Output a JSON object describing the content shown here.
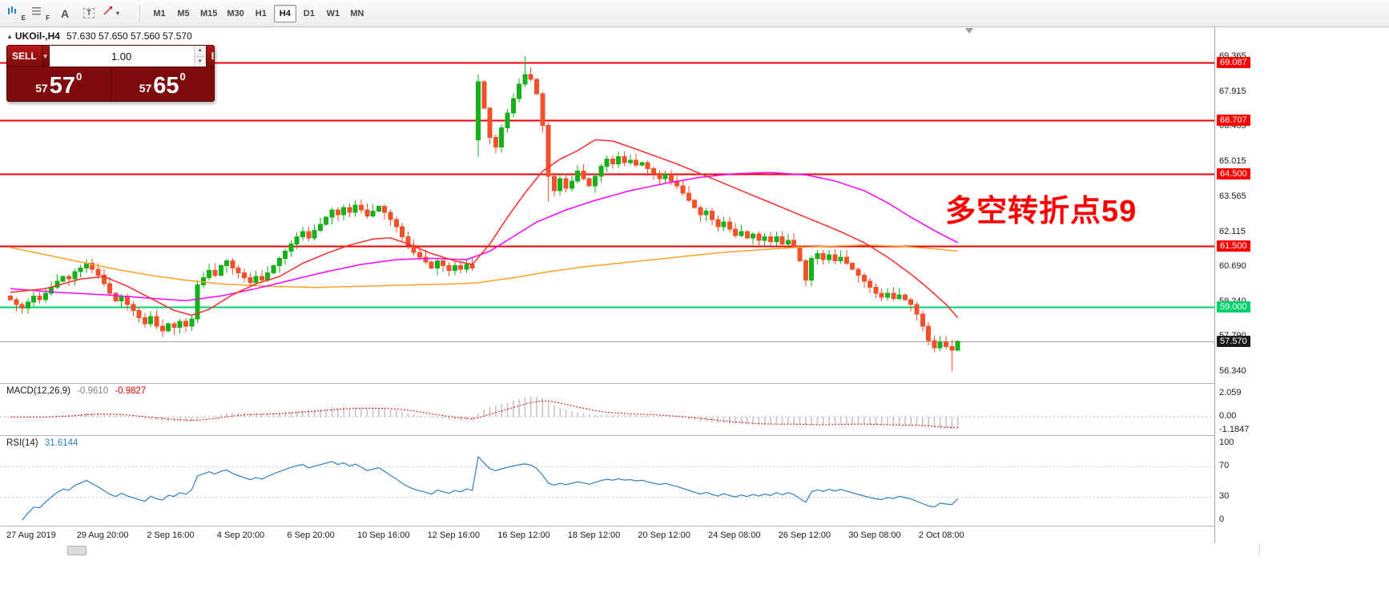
{
  "toolbar": {
    "tools": [
      {
        "label": "E"
      },
      {
        "label": "F"
      },
      {
        "label": "A"
      },
      {
        "label": "T"
      },
      {
        "label": ""
      }
    ],
    "timeframes": [
      "M1",
      "M5",
      "M15",
      "M30",
      "H1",
      "H4",
      "D1",
      "W1",
      "MN"
    ],
    "active_timeframe": "H4"
  },
  "chart": {
    "title": "UKOil-,H4",
    "quote": "57.630 57.650 57.560 57.570",
    "annotation": {
      "text": "多空转折点59",
      "color": "#ff0000"
    }
  },
  "trade_panel": {
    "sell_label": "SELL",
    "buy_label": "BUY",
    "volume": "1.00",
    "bid": {
      "int": "57",
      "dec": "57",
      "pip": "0",
      "full": "57.570"
    },
    "ask": {
      "int": "57",
      "dec": "65",
      "pip": "0",
      "full": "57.650"
    }
  },
  "chart_data": {
    "type": "candlestick",
    "symbol": "UKOil-",
    "timeframe": "H4",
    "ylim": [
      55.85,
      70.55
    ],
    "first_open": 59.45,
    "closes": [
      59.3,
      59.1,
      58.95,
      59.2,
      59.45,
      59.3,
      59.55,
      59.8,
      60.05,
      60.25,
      60.15,
      60.45,
      60.6,
      60.8,
      60.55,
      60.3,
      59.95,
      59.55,
      59.25,
      59.45,
      59.1,
      58.85,
      58.55,
      58.3,
      58.6,
      58.2,
      58.0,
      58.3,
      58.15,
      58.4,
      58.2,
      58.5,
      59.9,
      60.2,
      60.5,
      60.3,
      60.7,
      60.9,
      60.6,
      60.4,
      60.2,
      60.0,
      60.25,
      60.1,
      60.4,
      60.7,
      61.0,
      61.3,
      61.6,
      61.9,
      62.1,
      61.85,
      62.15,
      62.4,
      62.7,
      63.0,
      62.8,
      63.1,
      62.9,
      63.2,
      63.0,
      62.75,
      62.95,
      63.15,
      62.9,
      62.6,
      62.3,
      61.9,
      61.55,
      61.25,
      61.05,
      60.85,
      60.6,
      60.9,
      60.7,
      60.5,
      60.7,
      60.55,
      60.75,
      60.6,
      68.3,
      67.2,
      66.0,
      65.6,
      66.4,
      67.0,
      67.6,
      68.2,
      68.6,
      68.4,
      67.8,
      66.5,
      64.4,
      63.8,
      64.3,
      63.9,
      64.2,
      64.6,
      64.3,
      64.0,
      64.4,
      64.8,
      65.1,
      64.9,
      65.2,
      64.95,
      65.05,
      64.85,
      64.95,
      64.7,
      64.5,
      64.3,
      64.45,
      64.2,
      64.0,
      63.7,
      63.4,
      63.1,
      62.8,
      62.95,
      62.6,
      62.3,
      62.5,
      62.2,
      61.95,
      62.1,
      61.85,
      62.0,
      61.75,
      61.9,
      61.7,
      61.9,
      61.6,
      61.75,
      61.5,
      60.9,
      60.1,
      61.0,
      61.2,
      60.95,
      61.15,
      60.9,
      61.05,
      60.8,
      60.55,
      60.3,
      60.05,
      59.8,
      59.55,
      59.4,
      59.55,
      59.35,
      59.5,
      59.3,
      59.1,
      58.7,
      58.2,
      57.6,
      57.3,
      57.55,
      57.35,
      57.2,
      57.57
    ],
    "candle_overrides": {
      "26": {
        "low": 57.75
      },
      "80": {
        "open": 65.9,
        "low": 65.2
      },
      "88": {
        "high": 69.365
      },
      "92": {
        "low": 63.35
      },
      "136": {
        "low": 59.85
      },
      "161": {
        "low": 56.34
      }
    },
    "candle_up_color": "#16b01b",
    "candle_down_color": "#f2512a",
    "y_ticks": [
      69.365,
      67.915,
      66.465,
      65.015,
      63.565,
      62.115,
      60.69,
      59.24,
      57.79,
      56.34
    ],
    "h_lines": [
      {
        "price": 69.087,
        "color": "#f00000"
      },
      {
        "price": 66.707,
        "color": "#f00000"
      },
      {
        "price": 64.5,
        "color": "#f00000"
      },
      {
        "price": 61.5,
        "color": "#f00000"
      },
      {
        "price": 59.0,
        "color": "#00d26a"
      }
    ],
    "bid_line": {
      "price": 57.57,
      "line_color": "#a0a0a0",
      "badge_color": "#1b1b1b"
    },
    "ma_lines": [
      {
        "name": "slow-ma",
        "color": "#ffa028",
        "points": [
          [
            0,
            61.45
          ],
          [
            6,
            61.15
          ],
          [
            12,
            60.85
          ],
          [
            18,
            60.55
          ],
          [
            24,
            60.3
          ],
          [
            30,
            60.1
          ],
          [
            36,
            59.95
          ],
          [
            44,
            59.85
          ],
          [
            52,
            59.8
          ],
          [
            60,
            59.85
          ],
          [
            68,
            59.9
          ],
          [
            76,
            59.95
          ],
          [
            80,
            60.0
          ],
          [
            86,
            60.2
          ],
          [
            92,
            60.45
          ],
          [
            98,
            60.65
          ],
          [
            104,
            60.8
          ],
          [
            110,
            60.95
          ],
          [
            116,
            61.1
          ],
          [
            122,
            61.25
          ],
          [
            128,
            61.35
          ],
          [
            134,
            61.45
          ],
          [
            140,
            61.5
          ],
          [
            146,
            61.55
          ],
          [
            152,
            61.5
          ],
          [
            157,
            61.42
          ],
          [
            162,
            61.3
          ]
        ]
      },
      {
        "name": "mid-ma",
        "color": "#ff00ff",
        "points": [
          [
            0,
            59.75
          ],
          [
            8,
            59.6
          ],
          [
            16,
            59.5
          ],
          [
            24,
            59.35
          ],
          [
            30,
            59.25
          ],
          [
            36,
            59.45
          ],
          [
            42,
            59.75
          ],
          [
            48,
            60.1
          ],
          [
            54,
            60.45
          ],
          [
            60,
            60.75
          ],
          [
            66,
            60.95
          ],
          [
            72,
            61.0
          ],
          [
            78,
            60.95
          ],
          [
            82,
            61.3
          ],
          [
            86,
            61.9
          ],
          [
            90,
            62.5
          ],
          [
            95,
            63.0
          ],
          [
            100,
            63.4
          ],
          [
            106,
            63.8
          ],
          [
            112,
            64.1
          ],
          [
            118,
            64.35
          ],
          [
            124,
            64.5
          ],
          [
            130,
            64.55
          ],
          [
            136,
            64.45
          ],
          [
            141,
            64.2
          ],
          [
            146,
            63.8
          ],
          [
            150,
            63.3
          ],
          [
            154,
            62.7
          ],
          [
            158,
            62.15
          ],
          [
            162,
            61.65
          ]
        ]
      },
      {
        "name": "fast-ma",
        "color": "#ff2a2a",
        "points": [
          [
            0,
            59.6
          ],
          [
            6,
            59.75
          ],
          [
            12,
            60.15
          ],
          [
            16,
            60.25
          ],
          [
            20,
            59.85
          ],
          [
            24,
            59.35
          ],
          [
            28,
            58.85
          ],
          [
            31,
            58.65
          ],
          [
            34,
            58.9
          ],
          [
            38,
            59.5
          ],
          [
            42,
            59.95
          ],
          [
            46,
            60.25
          ],
          [
            50,
            60.8
          ],
          [
            54,
            61.2
          ],
          [
            58,
            61.55
          ],
          [
            62,
            61.8
          ],
          [
            65,
            61.85
          ],
          [
            68,
            61.6
          ],
          [
            72,
            61.2
          ],
          [
            76,
            60.9
          ],
          [
            79,
            60.75
          ],
          [
            82,
            61.6
          ],
          [
            85,
            62.7
          ],
          [
            88,
            63.7
          ],
          [
            91,
            64.6
          ],
          [
            94,
            65.1
          ],
          [
            97,
            65.45
          ],
          [
            100,
            65.9
          ],
          [
            103,
            65.85
          ],
          [
            106,
            65.6
          ],
          [
            110,
            65.25
          ],
          [
            114,
            64.9
          ],
          [
            118,
            64.5
          ],
          [
            122,
            64.1
          ],
          [
            126,
            63.7
          ],
          [
            130,
            63.3
          ],
          [
            134,
            62.9
          ],
          [
            138,
            62.5
          ],
          [
            142,
            62.1
          ],
          [
            146,
            61.65
          ],
          [
            150,
            61.05
          ],
          [
            154,
            60.35
          ],
          [
            157,
            59.75
          ],
          [
            160,
            59.1
          ],
          [
            162,
            58.55
          ]
        ]
      }
    ],
    "x_labels": {
      "indices": [
        0,
        12,
        24,
        36,
        48,
        60,
        72,
        84,
        96,
        108,
        120,
        132,
        144,
        156
      ],
      "texts": [
        "27 Aug 2019",
        "29 Aug 20:00",
        "2 Sep 16:00",
        "4 Sep 20:00",
        "6 Sep 20:00",
        "10 Sep 16:00",
        "12 Sep 16:00",
        "16 Sep 12:00",
        "18 Sep 12:00",
        "20 Sep 12:00",
        "24 Sep 08:00",
        "26 Sep 12:00",
        "30 Sep 08:00",
        "2 Oct 08:00"
      ]
    },
    "macd": {
      "title": "MACD(12,26,9)",
      "value_main": "-0.9610",
      "value_signal": "-0.9827",
      "params": [
        12,
        26,
        9
      ],
      "ylim": [
        -1.68,
        2.905
      ],
      "axis": [
        {
          "v": 2.059,
          "t": "2.059"
        },
        {
          "v": 0,
          "t": "0.00"
        },
        {
          "v": -1.1847,
          "t": "-1.1847"
        }
      ],
      "hist_color": "#c4c4c4",
      "signal_color": "#e00000"
    },
    "rsi": {
      "title": "RSI(14)",
      "value": "31.6144",
      "period": 14,
      "ylim": [
        -8.33,
        109.4
      ],
      "axis": [
        {
          "v": 100,
          "t": "100"
        },
        {
          "v": 70,
          "t": "70"
        },
        {
          "v": 30,
          "t": "30"
        },
        {
          "v": 0,
          "t": "0"
        }
      ],
      "levels": [
        70,
        30
      ],
      "line_color": "#2e7fc2",
      "level_color": "#c8c8c8"
    }
  }
}
